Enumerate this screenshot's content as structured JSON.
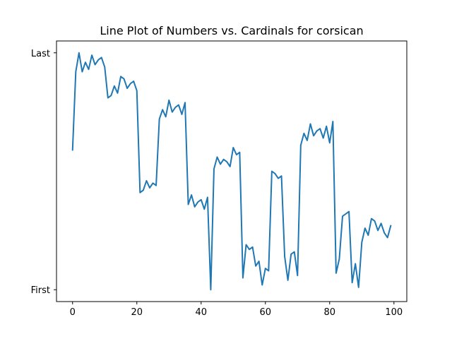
{
  "chart_data": {
    "type": "line",
    "title": "Line Plot of Numbers vs. Cardinals for corsican",
    "xlabel": "",
    "ylabel": "",
    "grid": false,
    "xlim": [
      -5,
      104
    ],
    "ylim": [
      -0.05,
      1.05
    ],
    "x_ticks": [
      0,
      20,
      40,
      60,
      80,
      100
    ],
    "y_ticks": [
      {
        "value": 0,
        "label": "First"
      },
      {
        "value": 1,
        "label": "Last"
      }
    ],
    "series": [
      {
        "color": "#1f77b4",
        "x": [
          0,
          1,
          2,
          3,
          4,
          5,
          6,
          7,
          8,
          9,
          10,
          11,
          12,
          13,
          14,
          15,
          16,
          17,
          18,
          19,
          20,
          21,
          22,
          23,
          24,
          25,
          26,
          27,
          28,
          29,
          30,
          31,
          32,
          33,
          34,
          35,
          36,
          37,
          38,
          39,
          40,
          41,
          42,
          43,
          44,
          45,
          46,
          47,
          48,
          49,
          50,
          51,
          52,
          53,
          54,
          55,
          56,
          57,
          58,
          59,
          60,
          61,
          62,
          63,
          64,
          65,
          66,
          67,
          68,
          69,
          70,
          71,
          72,
          73,
          74,
          75,
          76,
          77,
          78,
          79,
          80,
          81,
          82,
          83,
          84,
          85,
          86,
          87,
          88,
          89,
          90,
          91,
          92,
          93,
          94,
          95,
          96,
          97,
          98,
          99
        ],
        "y": [
          0.59,
          0.92,
          1.0,
          0.92,
          0.96,
          0.93,
          0.99,
          0.95,
          0.97,
          0.98,
          0.94,
          0.81,
          0.82,
          0.86,
          0.83,
          0.9,
          0.89,
          0.85,
          0.87,
          0.88,
          0.84,
          0.41,
          0.42,
          0.46,
          0.43,
          0.45,
          0.44,
          0.72,
          0.76,
          0.73,
          0.8,
          0.75,
          0.77,
          0.78,
          0.74,
          0.79,
          0.36,
          0.4,
          0.35,
          0.37,
          0.38,
          0.34,
          0.39,
          0.0,
          0.51,
          0.56,
          0.53,
          0.55,
          0.54,
          0.52,
          0.6,
          0.57,
          0.58,
          0.05,
          0.19,
          0.17,
          0.18,
          0.1,
          0.12,
          0.02,
          0.09,
          0.08,
          0.5,
          0.49,
          0.47,
          0.48,
          0.14,
          0.04,
          0.15,
          0.16,
          0.06,
          0.61,
          0.66,
          0.63,
          0.7,
          0.65,
          0.67,
          0.68,
          0.64,
          0.69,
          0.62,
          0.71,
          0.07,
          0.13,
          0.31,
          0.32,
          0.33,
          0.03,
          0.11,
          0.01,
          0.2,
          0.26,
          0.23,
          0.3,
          0.29,
          0.25,
          0.28,
          0.24,
          0.22,
          0.27
        ]
      }
    ]
  }
}
